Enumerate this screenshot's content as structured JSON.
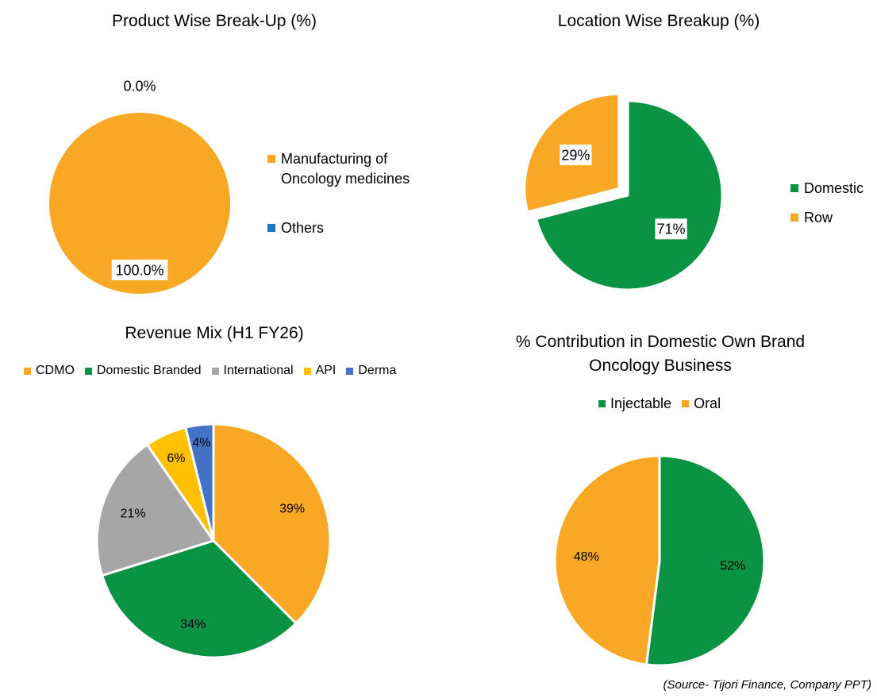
{
  "chart_data": [
    {
      "type": "pie",
      "title": "Product Wise Break-Up (%)",
      "categories": [
        "Manufacturing of Oncology medicines",
        "Others"
      ],
      "values": [
        100.0,
        0.0
      ],
      "data_labels": [
        "100.0%",
        "0.0%"
      ],
      "colors": [
        "#F9A825",
        "#1F77C4"
      ],
      "legend_position": "right"
    },
    {
      "type": "pie",
      "title": "Location Wise Breakup (%)",
      "categories": [
        "Domestic",
        "Row"
      ],
      "values": [
        71,
        29
      ],
      "data_labels": [
        "71%",
        "29%"
      ],
      "colors": [
        "#0A9343",
        "#F9A825"
      ],
      "exploded": [
        "Row"
      ],
      "legend_position": "right"
    },
    {
      "type": "pie",
      "title": "Revenue Mix (H1 FY26)",
      "categories": [
        "CDMO",
        "Domestic Branded",
        "International",
        "API",
        "Derma"
      ],
      "values": [
        39,
        34,
        21,
        6,
        4
      ],
      "data_labels": [
        "39%",
        "34%",
        "21%",
        "6%",
        "4%"
      ],
      "colors": [
        "#F9A825",
        "#0A9343",
        "#A6A6A6",
        "#FFC000",
        "#4472C4"
      ],
      "legend_position": "top"
    },
    {
      "type": "pie",
      "title": "% Contribution in Domestic Own Brand Oncology Business",
      "title_lines": [
        "% Contribution in Domestic Own Brand",
        "Oncology Business"
      ],
      "categories": [
        "Injectable",
        "Oral"
      ],
      "values": [
        52,
        48
      ],
      "data_labels": [
        "52%",
        "48%"
      ],
      "colors": [
        "#0A9343",
        "#F9A825"
      ],
      "legend_position": "top"
    }
  ],
  "source_note": "(Source- Tijori Finance, Company PPT)"
}
